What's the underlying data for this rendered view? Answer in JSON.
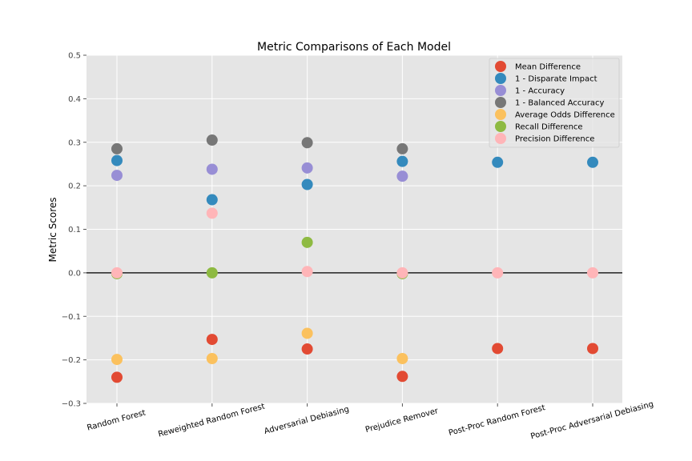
{
  "chart_data": {
    "type": "scatter",
    "title": "Metric Comparisons of Each Model",
    "xlabel": "",
    "ylabel": "Metric Scores",
    "categories": [
      "Random Forest",
      "Reweighted Random Forest",
      "Adversarial Debiasing",
      "Prejudice Remover",
      "Post-Proc Random Forest",
      "Post-Proc Adversarial Debiasing"
    ],
    "ylim": [
      -0.3,
      0.5
    ],
    "yticks": [
      -0.3,
      -0.2,
      -0.1,
      0.0,
      0.1,
      0.2,
      0.3,
      0.4,
      0.5
    ],
    "ytick_labels": [
      "−0.3",
      "−0.2",
      "−0.1",
      "0.0",
      "0.1",
      "0.2",
      "0.3",
      "0.4",
      "0.5"
    ],
    "zero_line": 0.0,
    "grid": true,
    "legend_position": "top-right",
    "series": [
      {
        "name": "Mean Difference",
        "color": "#e24a33",
        "values": [
          -0.24,
          -0.153,
          -0.175,
          -0.238,
          -0.174,
          -0.174
        ]
      },
      {
        "name": "1 - Disparate Impact",
        "color": "#348abd",
        "values": [
          0.258,
          0.168,
          0.203,
          0.256,
          0.254,
          0.254
        ]
      },
      {
        "name": "1 - Accuracy",
        "color": "#988ed5",
        "values": [
          0.224,
          0.238,
          0.241,
          0.222,
          null,
          null
        ]
      },
      {
        "name": "1 - Balanced Accuracy",
        "color": "#777777",
        "values": [
          0.285,
          0.305,
          0.299,
          0.285,
          null,
          null
        ]
      },
      {
        "name": "Average Odds Difference",
        "color": "#fbc15e",
        "values": [
          -0.199,
          -0.197,
          -0.139,
          -0.197,
          null,
          null
        ]
      },
      {
        "name": "Recall Difference",
        "color": "#8eba42",
        "values": [
          -0.002,
          0.0,
          0.07,
          -0.002,
          null,
          null
        ]
      },
      {
        "name": "Precision Difference",
        "color": "#ffb5b8",
        "values": [
          0.0,
          0.137,
          0.003,
          0.0,
          0.0,
          0.0
        ]
      }
    ]
  }
}
